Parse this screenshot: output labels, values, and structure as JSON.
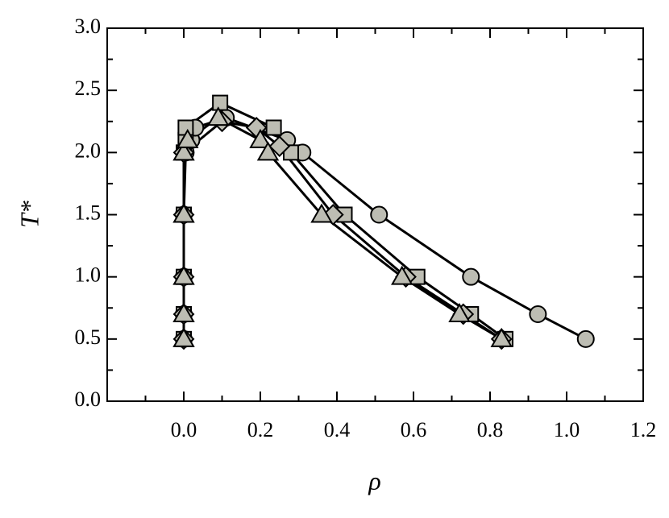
{
  "chart_data": {
    "type": "line",
    "xlabel": "ρ",
    "ylabel": "T*",
    "xlim": [
      -0.2,
      1.2
    ],
    "ylim": [
      0,
      3
    ],
    "xticks": [
      {
        "value": 0,
        "label": "0.0"
      },
      0.2,
      0.4,
      0.6,
      0.8,
      {
        "value": 1,
        "label": "1.0"
      },
      1.2
    ],
    "yticks": [
      {
        "value": 0,
        "label": "0.0"
      },
      0.5,
      {
        "value": 1,
        "label": "1.0"
      },
      1.5,
      {
        "value": 2,
        "label": "2.0"
      },
      2.5,
      {
        "value": 3,
        "label": "3.0"
      }
    ],
    "series": [
      {
        "marker": "circle",
        "color": "#bdbdb3",
        "x": [
          0,
          0,
          0,
          0,
          0.005,
          0.02,
          0.03,
          0.11,
          0.27,
          0.31,
          0.51,
          0.75,
          0.925,
          1.05
        ],
        "values": [
          0.5,
          0.7,
          1.0,
          1.5,
          2.0,
          2.1,
          2.2,
          2.28,
          2.1,
          2.0,
          1.5,
          1.0,
          0.7,
          0.5
        ]
      },
      {
        "marker": "square",
        "color": "#bdbdb3",
        "x": [
          0,
          0,
          0,
          0,
          0,
          0.005,
          0.005,
          0.095,
          0.235,
          0.28,
          0.42,
          0.61,
          0.75,
          0.84
        ],
        "values": [
          0.5,
          0.7,
          1.0,
          1.5,
          2.0,
          2.1,
          2.2,
          2.4,
          2.2,
          2.0,
          1.5,
          1.0,
          0.7,
          0.5
        ]
      },
      {
        "marker": "diamond",
        "color": "#bdbdb3",
        "x": [
          0,
          0,
          0,
          0,
          0,
          0.1,
          0.19,
          0.25,
          0.39,
          0.58,
          0.73,
          0.83
        ],
        "values": [
          0.5,
          0.7,
          1.0,
          1.5,
          2.0,
          2.25,
          2.2,
          2.05,
          1.5,
          1.0,
          0.7,
          0.5
        ]
      },
      {
        "marker": "triangle",
        "color": "#bdbdb3",
        "x": [
          0,
          0,
          0,
          0,
          0,
          0.01,
          0.09,
          0.2,
          0.22,
          0.36,
          0.57,
          0.72,
          0.83
        ],
        "values": [
          0.5,
          0.7,
          1.0,
          1.5,
          2.0,
          2.1,
          2.28,
          2.1,
          2.0,
          1.5,
          1.0,
          0.7,
          0.5
        ]
      }
    ]
  }
}
